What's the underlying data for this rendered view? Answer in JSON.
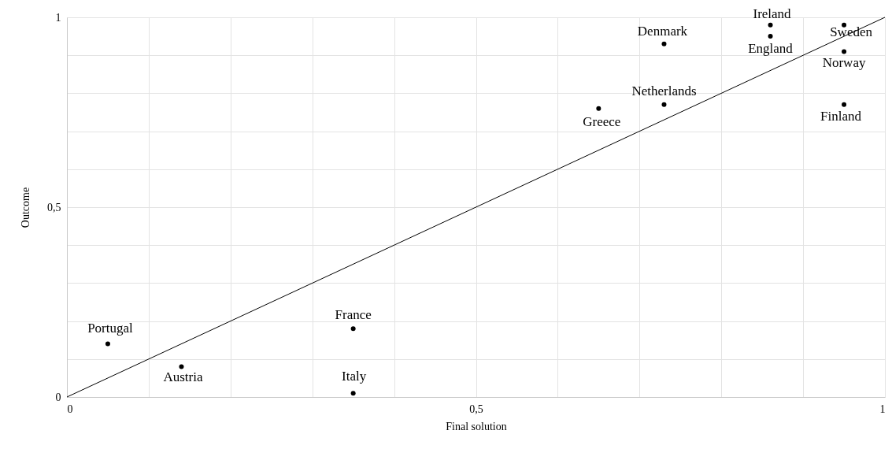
{
  "chart_data": {
    "type": "scatter",
    "xlabel": "Final solution",
    "ylabel": "Outcome",
    "xlim": [
      0,
      1
    ],
    "ylim": [
      0,
      1
    ],
    "xticks": [
      0,
      {
        "value": 0.1,
        "label": null
      },
      {
        "value": 0.2,
        "label": null
      },
      {
        "value": 0.3,
        "label": null
      },
      {
        "value": 0.4,
        "label": null
      },
      {
        "value": 0.5,
        "label": "0,5"
      },
      {
        "value": 0.6,
        "label": null
      },
      {
        "value": 0.7,
        "label": null
      },
      {
        "value": 0.8,
        "label": null
      },
      {
        "value": 0.9,
        "label": null
      },
      1
    ],
    "yticks": [
      0,
      {
        "value": 0.1,
        "label": null
      },
      {
        "value": 0.2,
        "label": null
      },
      {
        "value": 0.3,
        "label": null
      },
      {
        "value": 0.4,
        "label": null
      },
      {
        "value": 0.5,
        "label": "0,5"
      },
      {
        "value": 0.6,
        "label": null
      },
      {
        "value": 0.7,
        "label": null
      },
      {
        "value": 0.8,
        "label": null
      },
      {
        "value": 0.9,
        "label": null
      },
      1
    ],
    "grid": true,
    "series": [
      {
        "marker": "circle",
        "color": "#000000",
        "x": [
          0.05,
          0.14,
          0.35,
          0.35,
          0.65,
          0.73,
          0.73,
          0.86,
          0.86,
          0.95,
          0.95,
          0.95
        ],
        "values": [
          0.14,
          0.08,
          0.18,
          0.01,
          0.76,
          0.77,
          0.93,
          0.98,
          0.95,
          0.98,
          0.91,
          0.77
        ]
      },
      {
        "type": "line",
        "color": "#000000",
        "line_style": "solid",
        "x": [
          0,
          1
        ],
        "values": [
          0,
          1
        ]
      }
    ],
    "annotations": [
      {
        "text": "Portugal",
        "x": 0.05,
        "y": 0.14
      },
      {
        "text": "Austria",
        "x": 0.14,
        "y": 0.08
      },
      {
        "text": "France",
        "x": 0.35,
        "y": 0.18
      },
      {
        "text": "Italy",
        "x": 0.35,
        "y": 0.01
      },
      {
        "text": "Greece",
        "x": 0.65,
        "y": 0.76
      },
      {
        "text": "Netherlands",
        "x": 0.73,
        "y": 0.77
      },
      {
        "text": "Denmark",
        "x": 0.73,
        "y": 0.93
      },
      {
        "text": "Ireland",
        "x": 0.86,
        "y": 0.98
      },
      {
        "text": "England",
        "x": 0.86,
        "y": 0.95
      },
      {
        "text": "Sweden",
        "x": 0.95,
        "y": 0.98
      },
      {
        "text": "Norway",
        "x": 0.95,
        "y": 0.91
      },
      {
        "text": "Finland",
        "x": 0.95,
        "y": 0.77
      }
    ]
  }
}
